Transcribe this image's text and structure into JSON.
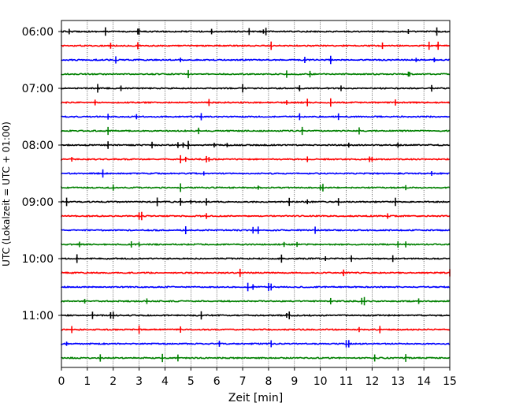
{
  "chart_data": {
    "type": "line",
    "title": "",
    "xlabel": "Zeit  [min]",
    "ylabel": "UTC (Lokalzeit = UTC + 01:00)",
    "xlim": [
      0,
      15
    ],
    "x_ticks": [
      "0",
      "1",
      "2",
      "3",
      "4",
      "5",
      "6",
      "7",
      "8",
      "9",
      "10",
      "11",
      "12",
      "13",
      "14",
      "15"
    ],
    "y_tick_labels": [
      "06:00",
      "07:00",
      "08:00",
      "09:00",
      "10:00",
      "11:00"
    ],
    "grid": "vertical dotted",
    "trace_colors": [
      "#000000",
      "#ff0000",
      "#0000ff",
      "#008000"
    ],
    "traces": [
      {
        "start": "06:00",
        "spikes": [
          0.3,
          1.7,
          2.95,
          3.0,
          5.8,
          7.25,
          7.8,
          7.9,
          13.4,
          14.5
        ]
      },
      {
        "start": "06:15",
        "spikes": [
          1.9,
          2.95,
          8.1,
          12.4,
          14.2,
          14.55
        ]
      },
      {
        "start": "06:30",
        "spikes": [
          2.1,
          4.6,
          9.4,
          10.4,
          13.7,
          14.4
        ]
      },
      {
        "start": "06:45",
        "spikes": [
          4.9,
          8.7,
          9.6,
          13.4,
          13.45
        ]
      },
      {
        "start": "07:00",
        "spikes": [
          1.4,
          2.3,
          7.0,
          9.2,
          10.8,
          14.3
        ]
      },
      {
        "start": "07:15",
        "spikes": [
          1.3,
          5.7,
          8.7,
          9.5,
          10.4,
          12.9
        ]
      },
      {
        "start": "07:30",
        "spikes": [
          1.8,
          2.9,
          5.4,
          9.2,
          10.7
        ]
      },
      {
        "start": "07:45",
        "spikes": [
          1.8,
          5.3,
          9.3,
          11.5
        ]
      },
      {
        "start": "08:00",
        "spikes": [
          1.8,
          3.5,
          4.5,
          4.7,
          4.9,
          5.9,
          6.4,
          11.1,
          13.0
        ]
      },
      {
        "start": "08:15",
        "spikes": [
          0.4,
          4.6,
          4.8,
          5.6,
          5.7,
          9.5,
          11.9,
          12.0
        ]
      },
      {
        "start": "08:30",
        "spikes": [
          1.6,
          5.5,
          14.3
        ]
      },
      {
        "start": "08:45",
        "spikes": [
          2.0,
          4.6,
          7.6,
          10.0,
          10.1,
          13.3
        ]
      },
      {
        "start": "09:00",
        "spikes": [
          0.2,
          3.7,
          4.6,
          5.0,
          5.6,
          8.8,
          9.5,
          10.7,
          12.9
        ]
      },
      {
        "start": "09:15",
        "spikes": [
          3.0,
          3.1,
          5.6,
          12.6
        ]
      },
      {
        "start": "09:30",
        "spikes": [
          4.8,
          7.4,
          7.6,
          9.8
        ]
      },
      {
        "start": "09:45",
        "spikes": [
          0.7,
          2.7,
          3.0,
          8.6,
          9.1,
          13.0,
          13.3
        ]
      },
      {
        "start": "10:00",
        "spikes": [
          0.6,
          8.5,
          10.2,
          11.2,
          12.8
        ]
      },
      {
        "start": "10:15",
        "spikes": [
          6.9,
          10.9,
          15.0
        ]
      },
      {
        "start": "10:30",
        "spikes": [
          7.2,
          7.4,
          8.0,
          8.1
        ]
      },
      {
        "start": "10:45",
        "spikes": [
          0.9,
          3.3,
          10.4,
          11.6,
          11.7,
          13.8
        ]
      },
      {
        "start": "11:00",
        "spikes": [
          1.2,
          1.9,
          2.0,
          5.4,
          8.7,
          8.8
        ]
      },
      {
        "start": "11:15",
        "spikes": [
          0.4,
          3.0,
          4.6,
          11.5,
          12.3
        ]
      },
      {
        "start": "11:30",
        "spikes": [
          0.2,
          6.1,
          8.1,
          11.0,
          11.1
        ]
      },
      {
        "start": "11:45",
        "spikes": [
          1.5,
          3.9,
          4.5,
          12.1,
          13.3
        ]
      }
    ]
  }
}
